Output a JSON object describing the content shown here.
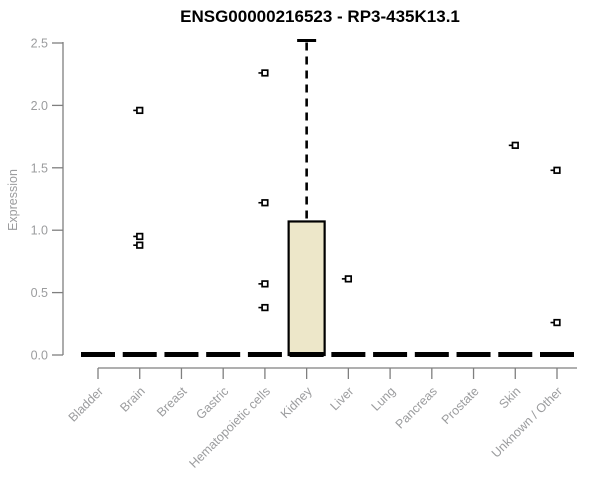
{
  "title": "ENSG00000216523 - RP3-435K13.1",
  "colors": {
    "background": "#ffffff",
    "title_text": "#000000",
    "axis_line": "#7f7f7f",
    "axis_text": "#9b9c9e",
    "box_fill": "#EDE7C9",
    "box_edge": "#000000",
    "outlier_fill": "#ffffff"
  },
  "chart_data": {
    "type": "boxplot",
    "title": "ENSG00000216523 - RP3-435K13.1",
    "xlabel": "",
    "ylabel": "Expression",
    "ylim": [
      0,
      2.5
    ],
    "yticks": [
      "0.0",
      "0.5",
      "1.0",
      "1.5",
      "2.0",
      "2.5"
    ],
    "grid": false,
    "legend": "none",
    "categories": [
      "Bladder",
      "Brain",
      "Breast",
      "Gastric",
      "Hematopoietic cells",
      "Kidney",
      "Liver",
      "Lung",
      "Pancreas",
      "Prostate",
      "Skin",
      "Unknown / Other"
    ],
    "series": [
      {
        "category": "Bladder",
        "q1": 0,
        "median": 0,
        "q3": 0,
        "whisker_low": 0,
        "whisker_high": 0,
        "outliers": []
      },
      {
        "category": "Brain",
        "q1": 0,
        "median": 0,
        "q3": 0,
        "whisker_low": 0,
        "whisker_high": 0,
        "outliers": [
          1.96,
          0.95,
          0.88
        ]
      },
      {
        "category": "Breast",
        "q1": 0,
        "median": 0,
        "q3": 0,
        "whisker_low": 0,
        "whisker_high": 0,
        "outliers": []
      },
      {
        "category": "Gastric",
        "q1": 0,
        "median": 0,
        "q3": 0,
        "whisker_low": 0,
        "whisker_high": 0,
        "outliers": []
      },
      {
        "category": "Hematopoietic cells",
        "q1": 0,
        "median": 0,
        "q3": 0,
        "whisker_low": 0,
        "whisker_high": 0,
        "outliers": [
          2.26,
          1.22,
          0.57,
          0.38
        ]
      },
      {
        "category": "Kidney",
        "q1": 0,
        "median": 0,
        "q3": 1.07,
        "whisker_low": 0,
        "whisker_high": 2.52,
        "outliers": []
      },
      {
        "category": "Liver",
        "q1": 0,
        "median": 0,
        "q3": 0,
        "whisker_low": 0,
        "whisker_high": 0,
        "outliers": [
          0.61
        ]
      },
      {
        "category": "Lung",
        "q1": 0,
        "median": 0,
        "q3": 0,
        "whisker_low": 0,
        "whisker_high": 0,
        "outliers": []
      },
      {
        "category": "Pancreas",
        "q1": 0,
        "median": 0,
        "q3": 0,
        "whisker_low": 0,
        "whisker_high": 0,
        "outliers": []
      },
      {
        "category": "Prostate",
        "q1": 0,
        "median": 0,
        "q3": 0,
        "whisker_low": 0,
        "whisker_high": 0,
        "outliers": []
      },
      {
        "category": "Skin",
        "q1": 0,
        "median": 0,
        "q3": 0,
        "whisker_low": 0,
        "whisker_high": 0,
        "outliers": [
          1.68
        ]
      },
      {
        "category": "Unknown / Other",
        "q1": 0,
        "median": 0,
        "q3": 0,
        "whisker_low": 0,
        "whisker_high": 0,
        "outliers": [
          1.48,
          0.26
        ]
      }
    ]
  }
}
